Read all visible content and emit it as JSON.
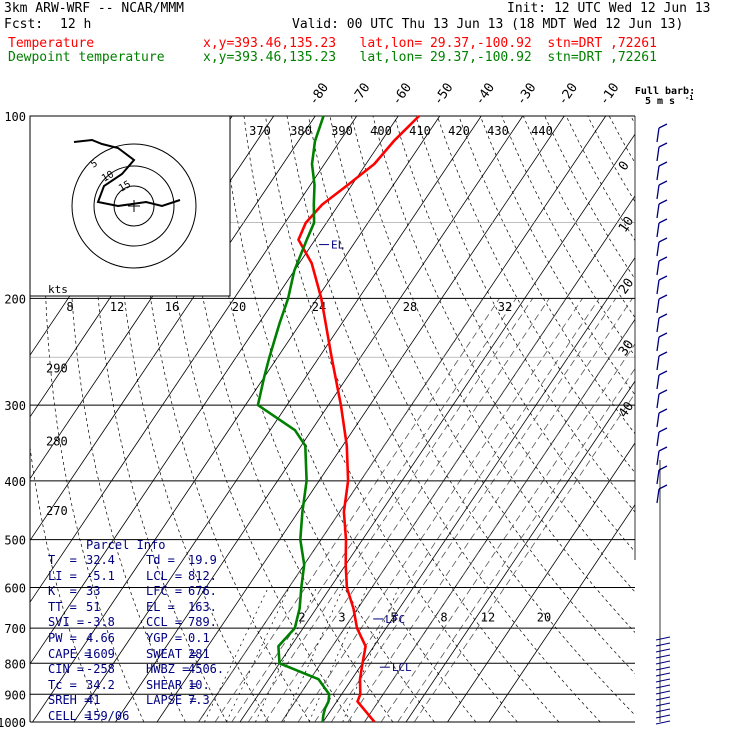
{
  "header": {
    "model": "3km ARW-WRF -- NCAR/MMM",
    "init": "Init: 12 UTC Wed 12 Jun 13",
    "fcst_label": "Fcst:",
    "fcst_value": "12 h",
    "valid": "Valid: 00 UTC Thu 13 Jun 13 (18 MDT Wed 12 Jun 13)",
    "temperature_label": "Temperature",
    "dewpoint_label": "Dewpoint temperature",
    "location_line": "x,y=393.46,135.23   lat,lon= 29.37,-100.92  stn=DRT ,72261",
    "colors": {
      "temperature": "#ff0000",
      "dewpoint": "#008000"
    }
  },
  "barb_key": {
    "title": "Full barb:",
    "value": "5 m s",
    "exponent": "-1"
  },
  "hodograph": {
    "speed_unit": "kts"
  },
  "chart_data": {
    "type": "line",
    "subtype": "skew-T log-P sounding",
    "yaxis": {
      "scale": "log",
      "reversed": true,
      "ylim": [
        1000,
        100
      ],
      "ticks": [
        100,
        200,
        300,
        400,
        500,
        600,
        700,
        800,
        900,
        1000
      ]
    },
    "isotherm_labels": [
      "-80",
      "-70",
      "-60",
      "-50",
      "-40",
      "-30",
      "-20",
      "-10",
      "0",
      "10",
      "20",
      "30",
      "40"
    ],
    "theta_labels": [
      "370",
      "380",
      "390",
      "400",
      "410",
      "420",
      "430",
      "440"
    ],
    "theta_labels_left": [
      "290",
      "280",
      "270"
    ],
    "wind_speed_labels": [
      "8",
      "12",
      "16",
      "20",
      "24",
      "28",
      "32"
    ],
    "mixing_ratio_labels": [
      "2",
      "3",
      "5",
      "8",
      "12",
      "20"
    ],
    "hodograph_labels": [
      "5",
      "10",
      "15"
    ],
    "levels": {
      "el": {
        "label": "EL",
        "pressure": 163
      },
      "lfc": {
        "label": "LFC",
        "pressure": 676
      },
      "lcl": {
        "label": "LCL",
        "pressure": 812
      }
    },
    "series": [
      {
        "name": "Temperature",
        "color": "#ff0000",
        "points": [
          [
            1000,
            32.4
          ],
          [
            965,
            29
          ],
          [
            925,
            25
          ],
          [
            900,
            24.5
          ],
          [
            850,
            22
          ],
          [
            825,
            21
          ],
          [
            800,
            20
          ],
          [
            750,
            18
          ],
          [
            700,
            13
          ],
          [
            650,
            9
          ],
          [
            600,
            4
          ],
          [
            550,
            0
          ],
          [
            500,
            -4
          ],
          [
            450,
            -9
          ],
          [
            400,
            -13
          ],
          [
            350,
            -19
          ],
          [
            300,
            -27
          ],
          [
            250,
            -37
          ],
          [
            200,
            -49
          ],
          [
            175,
            -57
          ],
          [
            160,
            -64
          ],
          [
            150,
            -65
          ],
          [
            140,
            -64
          ],
          [
            130,
            -61
          ],
          [
            120,
            -58
          ],
          [
            110,
            -57
          ],
          [
            100,
            -55
          ]
        ]
      },
      {
        "name": "Dewpoint temperature",
        "color": "#008000",
        "points": [
          [
            1000,
            19.9
          ],
          [
            975,
            19
          ],
          [
            950,
            18.3
          ],
          [
            925,
            18
          ],
          [
            900,
            17
          ],
          [
            850,
            12
          ],
          [
            800,
            0
          ],
          [
            750,
            -3
          ],
          [
            700,
            -2
          ],
          [
            650,
            -4
          ],
          [
            600,
            -7
          ],
          [
            550,
            -10
          ],
          [
            500,
            -15
          ],
          [
            450,
            -19
          ],
          [
            400,
            -23
          ],
          [
            350,
            -29
          ],
          [
            330,
            -34
          ],
          [
            300,
            -47
          ],
          [
            270,
            -50
          ],
          [
            250,
            -52
          ],
          [
            220,
            -55
          ],
          [
            200,
            -57
          ],
          [
            180,
            -60
          ],
          [
            160,
            -62
          ],
          [
            150,
            -63
          ],
          [
            140,
            -66
          ],
          [
            130,
            -69
          ],
          [
            120,
            -73
          ],
          [
            110,
            -76
          ],
          [
            100,
            -78
          ]
        ]
      }
    ]
  },
  "parcel_info": {
    "title": "Parcel Info",
    "rows": [
      [
        "T  =",
        "32.4",
        "Td =",
        "19.9"
      ],
      [
        "LI =",
        "-5.1",
        "LCL =",
        "812."
      ],
      [
        "K  =",
        "33",
        "LFC =",
        "676."
      ],
      [
        "TT =",
        "51",
        "EL =",
        "163."
      ],
      [
        "SVI =",
        "-3.8",
        "CCL =",
        "789."
      ],
      [
        "PW =",
        "4.66",
        "YGP =",
        "0.1"
      ],
      [
        "CAPE =",
        "1609",
        "SWEAT =",
        "281"
      ],
      [
        "CIN =",
        "-258",
        "HWBZ =",
        "4506."
      ],
      [
        "Tc =",
        "34.2",
        "SHEAR =",
        "10."
      ],
      [
        "SREH =",
        "41",
        "LAPSE =",
        "7.3"
      ],
      [
        "CELL =",
        "159/06",
        "",
        ""
      ]
    ]
  }
}
